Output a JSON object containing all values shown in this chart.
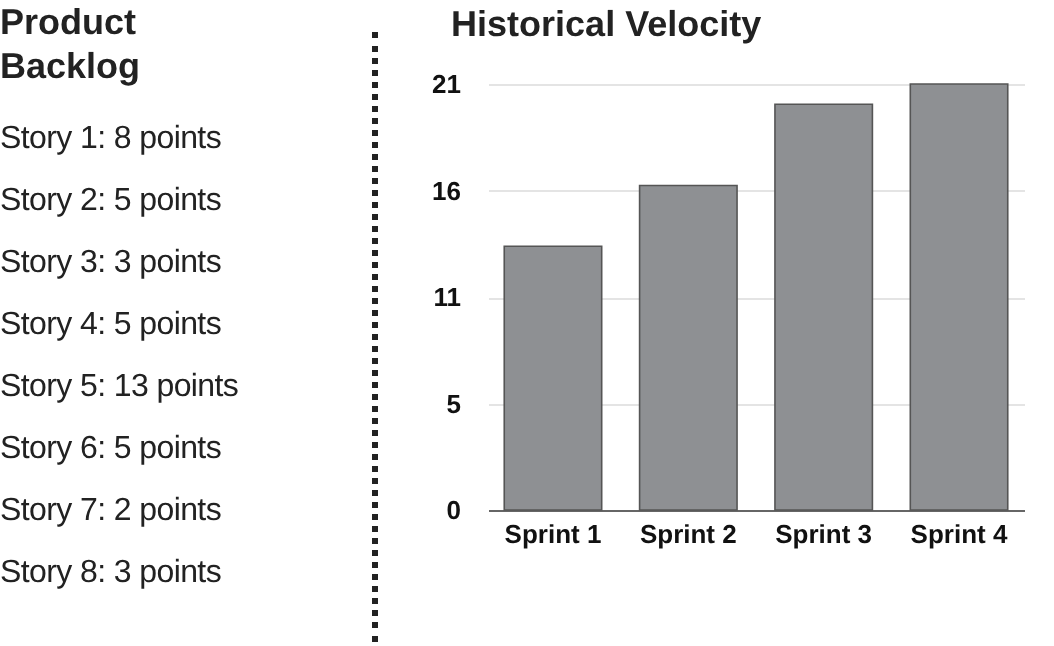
{
  "chart_data": [
    {
      "type": "other",
      "title": "Product Backlog",
      "annotations": [
        "Story 1: 8 points",
        "Story 2: 5 points",
        "Story 3: 3 points",
        "Story 4: 5 points",
        "Story 5: 13 points",
        "Story 6: 5 points",
        "Story 7: 2 points",
        "Story 8: 3 points"
      ]
    },
    {
      "type": "bar",
      "title": "Historical Velocity",
      "categories": [
        "Sprint 1",
        "Sprint 2",
        "Sprint 3",
        "Sprint 4"
      ],
      "values": [
        13,
        16,
        20,
        21
      ],
      "color": "#8e9093",
      "ylim": [
        0,
        21
      ],
      "yticks": [
        0,
        {
          "value": 5.25,
          "label": "5"
        },
        {
          "value": 10.5,
          "label": "11"
        },
        {
          "value": 15.75,
          "label": "16"
        },
        21
      ],
      "grid": "y"
    }
  ]
}
